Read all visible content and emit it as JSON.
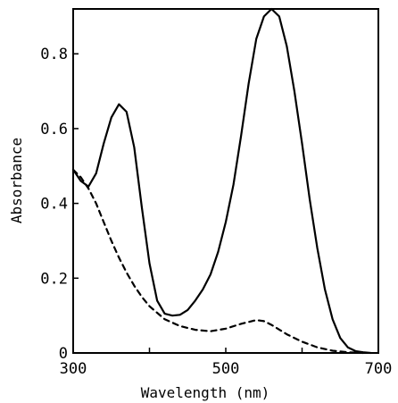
{
  "chart_data": {
    "type": "line",
    "title": "",
    "xlabel": "Wavelength (nm)",
    "ylabel": "Absorbance",
    "xlim": [
      300,
      700
    ],
    "ylim": [
      0,
      0.92
    ],
    "xticks": [
      300,
      500,
      700
    ],
    "xtick_labels": [
      "300",
      "500",
      "700"
    ],
    "xticks_minor": [
      400,
      600
    ],
    "yticks": [
      0,
      0.2,
      0.4,
      0.6,
      0.8
    ],
    "ytick_labels": [
      "0",
      "0.2",
      "0.4",
      "0.6",
      "0.8"
    ],
    "grid": false,
    "legend": "none",
    "series": [
      {
        "style": "solid",
        "color": "#000000",
        "points": [
          [
            300,
            0.49
          ],
          [
            310,
            0.46
          ],
          [
            320,
            0.445
          ],
          [
            330,
            0.48
          ],
          [
            340,
            0.56
          ],
          [
            350,
            0.63
          ],
          [
            360,
            0.665
          ],
          [
            370,
            0.645
          ],
          [
            380,
            0.55
          ],
          [
            390,
            0.39
          ],
          [
            400,
            0.24
          ],
          [
            410,
            0.14
          ],
          [
            420,
            0.105
          ],
          [
            430,
            0.1
          ],
          [
            440,
            0.102
          ],
          [
            450,
            0.115
          ],
          [
            460,
            0.14
          ],
          [
            470,
            0.17
          ],
          [
            480,
            0.21
          ],
          [
            490,
            0.27
          ],
          [
            500,
            0.35
          ],
          [
            510,
            0.45
          ],
          [
            520,
            0.58
          ],
          [
            530,
            0.72
          ],
          [
            540,
            0.84
          ],
          [
            550,
            0.9
          ],
          [
            560,
            0.92
          ],
          [
            570,
            0.9
          ],
          [
            580,
            0.82
          ],
          [
            590,
            0.7
          ],
          [
            600,
            0.56
          ],
          [
            610,
            0.41
          ],
          [
            620,
            0.28
          ],
          [
            630,
            0.17
          ],
          [
            640,
            0.09
          ],
          [
            650,
            0.04
          ],
          [
            660,
            0.015
          ],
          [
            670,
            0.005
          ],
          [
            680,
            0.002
          ],
          [
            690,
            0
          ]
        ]
      },
      {
        "style": "dashed",
        "color": "#000000",
        "points": [
          [
            300,
            0.49
          ],
          [
            310,
            0.47
          ],
          [
            320,
            0.44
          ],
          [
            330,
            0.4
          ],
          [
            340,
            0.35
          ],
          [
            350,
            0.3
          ],
          [
            360,
            0.255
          ],
          [
            370,
            0.215
          ],
          [
            380,
            0.18
          ],
          [
            390,
            0.15
          ],
          [
            400,
            0.125
          ],
          [
            420,
            0.09
          ],
          [
            440,
            0.072
          ],
          [
            460,
            0.062
          ],
          [
            480,
            0.058
          ],
          [
            500,
            0.065
          ],
          [
            520,
            0.078
          ],
          [
            540,
            0.088
          ],
          [
            550,
            0.085
          ],
          [
            560,
            0.075
          ],
          [
            580,
            0.05
          ],
          [
            600,
            0.03
          ],
          [
            620,
            0.015
          ],
          [
            640,
            0.006
          ],
          [
            660,
            0.002
          ],
          [
            680,
            0
          ]
        ]
      }
    ]
  }
}
